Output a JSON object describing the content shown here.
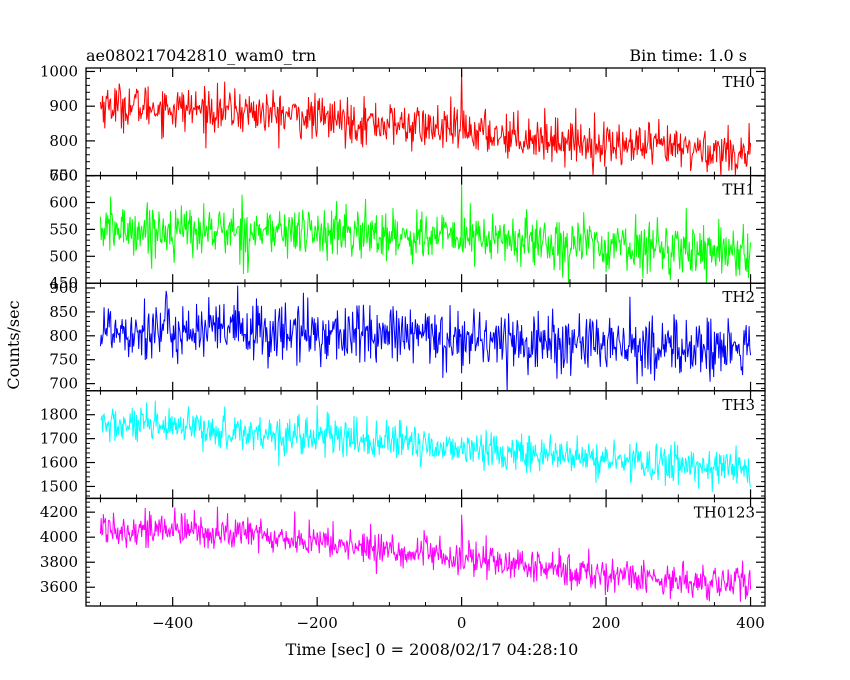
{
  "chart_data": {
    "type": "line",
    "title": "ae080217042810_wam0_trn",
    "bin_time_label": "Bin time: 1.0 s",
    "xlabel": "Time [sec] 0 = 2008/02/17 04:28:10",
    "ylabel": "Counts/sec",
    "xlim": [
      -520,
      420
    ],
    "x_ticks": [
      -400,
      -200,
      0,
      200,
      400
    ],
    "x_tick_labels": [
      "−400",
      "−200",
      "0",
      "200",
      "400"
    ],
    "x_range": [
      -500,
      400
    ],
    "grid": false,
    "panels": [
      {
        "name": "TH0",
        "color": "#ff0000",
        "ylim": [
          700,
          1010
        ],
        "yticks": [
          700,
          800,
          900,
          1000
        ],
        "trend": [
          {
            "x": -500,
            "y": 905
          },
          {
            "x": -300,
            "y": 885
          },
          {
            "x": 0,
            "y": 830
          },
          {
            "x": 200,
            "y": 790
          },
          {
            "x": 400,
            "y": 765
          }
        ],
        "noise_sigma": 32,
        "peak": {
          "x": 0,
          "y": 1005
        }
      },
      {
        "name": "TH1",
        "color": "#00ff00",
        "ylim": [
          450,
          650
        ],
        "yticks": [
          450,
          500,
          550,
          600,
          650
        ],
        "trend": [
          {
            "x": -500,
            "y": 550
          },
          {
            "x": -200,
            "y": 545
          },
          {
            "x": 0,
            "y": 535
          },
          {
            "x": 200,
            "y": 520
          },
          {
            "x": 400,
            "y": 510
          }
        ],
        "noise_sigma": 24,
        "peak": {
          "x": 0,
          "y": 640
        }
      },
      {
        "name": "TH2",
        "color": "#0000ff",
        "ylim": [
          685,
          910
        ],
        "yticks": [
          700,
          750,
          800,
          850,
          900
        ],
        "trend": [
          {
            "x": -500,
            "y": 815
          },
          {
            "x": -200,
            "y": 805
          },
          {
            "x": 0,
            "y": 795
          },
          {
            "x": 200,
            "y": 780
          },
          {
            "x": 400,
            "y": 770
          }
        ],
        "noise_sigma": 32,
        "peak": {
          "x": -310,
          "y": 905
        }
      },
      {
        "name": "TH3",
        "color": "#00ffff",
        "ylim": [
          1450,
          1900
        ],
        "yticks": [
          1500,
          1600,
          1700,
          1800
        ],
        "trend": [
          {
            "x": -500,
            "y": 1760
          },
          {
            "x": -200,
            "y": 1710
          },
          {
            "x": 0,
            "y": 1660
          },
          {
            "x": 200,
            "y": 1610
          },
          {
            "x": 400,
            "y": 1575
          }
        ],
        "noise_sigma": 40,
        "peak": {
          "x": -200,
          "y": 1840
        }
      },
      {
        "name": "TH0123",
        "color": "#ff00ff",
        "ylim": [
          3450,
          4310
        ],
        "yticks": [
          3600,
          3800,
          4000,
          4200
        ],
        "trend": [
          {
            "x": -500,
            "y": 4080
          },
          {
            "x": -300,
            "y": 4030
          },
          {
            "x": -200,
            "y": 3960
          },
          {
            "x": 0,
            "y": 3830
          },
          {
            "x": 200,
            "y": 3700
          },
          {
            "x": 400,
            "y": 3620
          }
        ],
        "noise_sigma": 70,
        "peak": {
          "x": 0,
          "y": 4180
        }
      }
    ]
  }
}
